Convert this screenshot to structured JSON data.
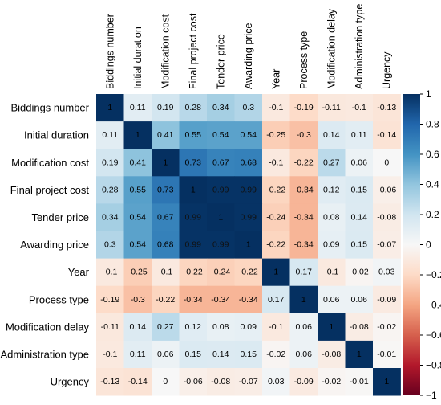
{
  "chart_data": {
    "type": "heatmap",
    "title": "",
    "variables": [
      "Biddings number",
      "Initial duration",
      "Modification cost",
      "Final project cost",
      "Tender price",
      "Awarding price",
      "Year",
      "Process type",
      "Modification delay",
      "Administration type",
      "Urgency"
    ],
    "matrix": [
      [
        "1",
        "0.11",
        "0.19",
        "0.28",
        "0.34",
        "0.3",
        "-0.1",
        "-0.19",
        "-0.11",
        "-0.1",
        "-0.13"
      ],
      [
        "0.11",
        "1",
        "0.41",
        "0.55",
        "0.54",
        "0.54",
        "-0.25",
        "-0.3",
        "0.14",
        "0.11",
        "-0.14"
      ],
      [
        "0.19",
        "0.41",
        "1",
        "0.73",
        "0.67",
        "0.68",
        "-0.1",
        "-0.22",
        "0.27",
        "0.06",
        "0"
      ],
      [
        "0.28",
        "0.55",
        "0.73",
        "1",
        "0.99",
        "0.99",
        "-0.22",
        "-0.34",
        "0.12",
        "0.15",
        "-0.06"
      ],
      [
        "0.34",
        "0.54",
        "0.67",
        "0.99",
        "1",
        "0.99",
        "-0.24",
        "-0.34",
        "0.08",
        "0.14",
        "-0.08"
      ],
      [
        "0.3",
        "0.54",
        "0.68",
        "0.99",
        "0.99",
        "1",
        "-0.22",
        "-0.34",
        "0.09",
        "0.15",
        "-0.07"
      ],
      [
        "-0.1",
        "-0.25",
        "-0.1",
        "-0.22",
        "-0.24",
        "-0.22",
        "1",
        "0.17",
        "-0.1",
        "-0.02",
        "0.03"
      ],
      [
        "-0.19",
        "-0.3",
        "-0.22",
        "-0.34",
        "-0.34",
        "-0.34",
        "0.17",
        "1",
        "0.06",
        "0.06",
        "-0.09"
      ],
      [
        "-0.11",
        "0.14",
        "0.27",
        "0.12",
        "0.08",
        "0.09",
        "-0.1",
        "0.06",
        "1",
        "-0.08",
        "-0.02"
      ],
      [
        "-0.1",
        "0.11",
        "0.06",
        "0.15",
        "0.14",
        "0.15",
        "-0.02",
        "0.06",
        "-0.08",
        "1",
        "-0.01"
      ],
      [
        "-0.13",
        "-0.14",
        "0",
        "-0.06",
        "-0.08",
        "-0.07",
        "0.03",
        "-0.09",
        "-0.02",
        "-0.01",
        "1"
      ]
    ],
    "value_range": [
      -1,
      1
    ],
    "colormap": {
      "negative": "#67001f",
      "zero": "#f7f7f7",
      "positive": "#053061"
    },
    "colorbar_ticks": [
      "1",
      "0.8",
      "0.6",
      "0.4",
      "0.2",
      "0",
      "−0.2",
      "−0.4",
      "−0.6",
      "−0.8",
      "−1"
    ],
    "colorbar_position": "right"
  }
}
